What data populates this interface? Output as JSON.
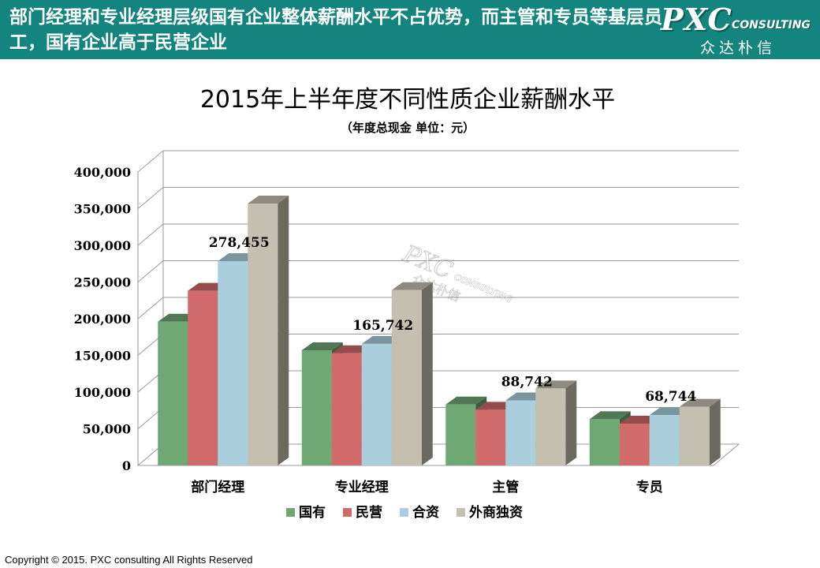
{
  "header": {
    "headline": "部门经理和专业经理层级国有企业整体薪酬水平不占优势，而主管和专员等基层员工，国有企业高于民营企业",
    "logo_main": "PXC",
    "logo_sub": "CONSULTING",
    "logo_cn": "众达朴信"
  },
  "watermark": {
    "main": "PXC",
    "sub": "CONSULTING",
    "cn": "众达朴信"
  },
  "footer": {
    "copyright": "Copyright © 2015. PXC consulting All Rights Reserved"
  },
  "chart_data": {
    "type": "bar",
    "title": "2015年上半年度不同性质企业薪酬水平",
    "subtitle": "（年度总现金  单位：元）",
    "categories": [
      "部门经理",
      "专业经理",
      "主管",
      "专员"
    ],
    "series": [
      {
        "name": "国有",
        "color": "#6fa775",
        "values": [
          196000,
          157000,
          83000,
          63000
        ]
      },
      {
        "name": "民营",
        "color": "#d16a6a",
        "values": [
          238000,
          153000,
          76000,
          57000
        ]
      },
      {
        "name": "合资",
        "color": "#a8cfdb",
        "values": [
          278455,
          165742,
          88742,
          68744
        ]
      },
      {
        "name": "外商独资",
        "color": "#c5bfb0",
        "values": [
          357000,
          239000,
          105000,
          80000
        ]
      }
    ],
    "data_labels": [
      {
        "category_index": 0,
        "series_index": 2,
        "text": "278,455"
      },
      {
        "category_index": 1,
        "series_index": 2,
        "text": "165,742"
      },
      {
        "category_index": 2,
        "series_index": 2,
        "text": "88,742"
      },
      {
        "category_index": 3,
        "series_index": 2,
        "text": "68,744"
      }
    ],
    "ylim": [
      0,
      400000
    ],
    "yticks": [
      0,
      50000,
      100000,
      150000,
      200000,
      250000,
      300000,
      350000,
      400000
    ],
    "ytick_labels": [
      "0",
      "50,000",
      "100,000",
      "150,000",
      "200,000",
      "250,000",
      "300,000",
      "350,000",
      "400,000"
    ],
    "grid": true,
    "legend_position": "bottom"
  }
}
